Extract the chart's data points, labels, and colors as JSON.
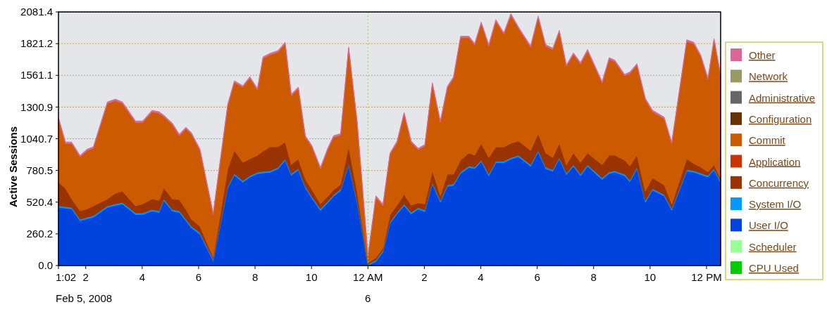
{
  "chart_data": {
    "type": "area",
    "stacked": true,
    "ylabel": "Active Sessions",
    "x": [
      "2008-02-05T13:02",
      "2008-02-05T13:17",
      "2008-02-05T13:30",
      "2008-02-05T13:48",
      "2008-02-05T14:03",
      "2008-02-05T14:16",
      "2008-02-05T14:46",
      "2008-02-05T15:03",
      "2008-02-05T15:18",
      "2008-02-05T15:46",
      "2008-02-05T16:01",
      "2008-02-05T16:21",
      "2008-02-05T16:36",
      "2008-02-05T16:46",
      "2008-02-05T17:04",
      "2008-02-05T17:19",
      "2008-02-05T17:33",
      "2008-02-05T17:45",
      "2008-02-05T18:03",
      "2008-02-05T18:31",
      "2008-02-05T19:02",
      "2008-02-05T19:16",
      "2008-02-05T19:34",
      "2008-02-05T19:49",
      "2008-02-05T20:05",
      "2008-02-05T20:17",
      "2008-02-05T20:32",
      "2008-02-05T20:49",
      "2008-02-05T21:04",
      "2008-02-05T21:17",
      "2008-02-05T21:32",
      "2008-02-05T21:47",
      "2008-02-05T22:01",
      "2008-02-05T22:19",
      "2008-02-05T22:35",
      "2008-02-05T22:47",
      "2008-02-05T23:02",
      "2008-02-05T23:19",
      "2008-02-05T23:37",
      "2008-02-06T00:00",
      "2008-02-06T00:17",
      "2008-02-06T00:32",
      "2008-02-06T00:47",
      "2008-02-06T01:02",
      "2008-02-06T01:17",
      "2008-02-06T01:32",
      "2008-02-06T01:47",
      "2008-02-06T02:01",
      "2008-02-06T02:17",
      "2008-02-06T02:34",
      "2008-02-06T02:49",
      "2008-02-06T03:02",
      "2008-02-06T03:17",
      "2008-02-06T03:35",
      "2008-02-06T03:47",
      "2008-02-06T04:01",
      "2008-02-06T04:17",
      "2008-02-06T04:32",
      "2008-02-06T04:49",
      "2008-02-06T05:04",
      "2008-02-06T05:20",
      "2008-02-06T05:46",
      "2008-02-06T06:02",
      "2008-02-06T06:18",
      "2008-02-06T06:33",
      "2008-02-06T06:47",
      "2008-02-06T07:02",
      "2008-02-06T07:17",
      "2008-02-06T07:32",
      "2008-02-06T07:47",
      "2008-02-06T08:18",
      "2008-02-06T08:33",
      "2008-02-06T08:45",
      "2008-02-06T09:06",
      "2008-02-06T09:17",
      "2008-02-06T09:32",
      "2008-02-06T09:50",
      "2008-02-06T10:05",
      "2008-02-06T10:30",
      "2008-02-06T10:46",
      "2008-02-06T11:18",
      "2008-02-06T11:33",
      "2008-02-06T11:48",
      "2008-02-06T12:03",
      "2008-02-06T12:16",
      "2008-02-06T12:30"
    ],
    "series": [
      {
        "name": "CPU Used",
        "color": "#00cc00",
        "values": [
          null,
          null,
          null,
          null,
          null,
          null,
          null,
          null,
          null,
          null,
          null,
          null,
          null,
          null,
          null,
          null,
          null,
          null,
          null,
          null,
          null,
          null,
          null,
          null,
          null,
          null,
          null,
          null,
          null,
          null,
          null,
          null,
          null,
          null,
          null,
          null,
          null,
          null,
          null,
          null,
          null,
          null,
          null,
          null,
          null,
          null,
          null,
          null,
          null,
          null,
          null,
          null,
          null,
          null,
          null,
          null,
          null,
          null,
          null,
          null,
          null,
          null,
          null,
          null,
          null,
          null,
          null,
          null,
          null,
          null,
          null,
          null,
          null,
          null,
          null,
          null,
          null,
          null,
          null,
          null,
          null,
          null,
          null,
          null,
          null,
          null
        ]
      },
      {
        "name": "Scheduler",
        "color": "#99ff99",
        "values": [
          null,
          null,
          null,
          null,
          null,
          null,
          null,
          null,
          null,
          null,
          null,
          null,
          null,
          null,
          null,
          null,
          null,
          null,
          null,
          null,
          null,
          null,
          null,
          null,
          null,
          null,
          null,
          null,
          null,
          null,
          null,
          null,
          null,
          null,
          null,
          null,
          null,
          null,
          null,
          null,
          null,
          null,
          null,
          null,
          null,
          null,
          null,
          null,
          null,
          null,
          null,
          null,
          null,
          null,
          null,
          null,
          null,
          null,
          null,
          null,
          null,
          null,
          null,
          null,
          null,
          null,
          null,
          null,
          null,
          null,
          null,
          null,
          null,
          null,
          null,
          null,
          null,
          null,
          null,
          null,
          null,
          null,
          null,
          null,
          null,
          null
        ]
      },
      {
        "name": "User I/O",
        "color": "#0044dd",
        "values": [
          477,
          471,
          465,
          367,
          384,
          396,
          477,
          494,
          505,
          419,
          419,
          448,
          436,
          534,
          448,
          436,
          367,
          309,
          257,
          38,
          638,
          742,
          684,
          725,
          754,
          760,
          765,
          794,
          863,
          742,
          783,
          638,
          552,
          453,
          517,
          569,
          615,
          823,
          517,
          0,
          33,
          111,
          346,
          424,
          492,
          424,
          463,
          443,
          668,
          521,
          649,
          658,
          756,
          805,
          795,
          853,
          737,
          844,
          844,
          873,
          893,
          815,
          932,
          795,
          775,
          873,
          746,
          815,
          737,
          815,
          707,
          756,
          766,
          737,
          687,
          795,
          521,
          619,
          571,
          453,
          775,
          766,
          746,
          727,
          785,
          678
        ]
      },
      {
        "name": "System I/O",
        "color": "#0099ff",
        "values": [
          12,
          12,
          12,
          12,
          12,
          12,
          12,
          12,
          12,
          12,
          12,
          12,
          12,
          12,
          12,
          12,
          12,
          12,
          12,
          12,
          12,
          12,
          12,
          12,
          12,
          12,
          12,
          12,
          12,
          12,
          12,
          12,
          12,
          12,
          12,
          12,
          12,
          12,
          12,
          9,
          12,
          12,
          12,
          12,
          12,
          12,
          12,
          12,
          12,
          12,
          12,
          12,
          12,
          12,
          12,
          12,
          12,
          12,
          12,
          12,
          12,
          12,
          12,
          12,
          12,
          12,
          12,
          12,
          12,
          12,
          12,
          12,
          12,
          12,
          12,
          12,
          12,
          12,
          12,
          12,
          12,
          12,
          12,
          12,
          12,
          12
        ]
      },
      {
        "name": "Concurrency",
        "color": "#993300",
        "values": [
          196,
          150,
          69,
          69,
          69,
          81,
          57,
          87,
          93,
          58,
          75,
          86,
          87,
          93,
          86,
          93,
          81,
          58,
          52,
          17,
          145,
          191,
          151,
          138,
          138,
          167,
          197,
          168,
          139,
          75,
          80,
          58,
          57,
          41,
          40,
          40,
          41,
          139,
          81,
          12,
          19,
          19,
          59,
          59,
          79,
          59,
          39,
          49,
          98,
          40,
          88,
          79,
          97,
          107,
          98,
          138,
          136,
          117,
          117,
          118,
          117,
          117,
          137,
          117,
          98,
          118,
          69,
          97,
          97,
          97,
          108,
          137,
          127,
          116,
          118,
          98,
          78,
          88,
          78,
          39,
          88,
          59,
          49,
          29,
          30,
          20
        ]
      },
      {
        "name": "Application",
        "color": "#cc3300",
        "values": [
          null,
          null,
          null,
          null,
          null,
          null,
          null,
          null,
          null,
          null,
          null,
          null,
          null,
          null,
          null,
          null,
          null,
          null,
          null,
          null,
          null,
          null,
          null,
          null,
          null,
          null,
          null,
          null,
          null,
          null,
          null,
          null,
          null,
          null,
          null,
          null,
          null,
          null,
          null,
          null,
          null,
          null,
          null,
          null,
          null,
          null,
          null,
          null,
          null,
          null,
          null,
          null,
          null,
          null,
          null,
          null,
          null,
          null,
          null,
          null,
          null,
          null,
          null,
          null,
          null,
          null,
          null,
          null,
          null,
          null,
          null,
          null,
          null,
          null,
          null,
          null,
          null,
          null,
          null,
          null,
          null,
          null,
          null,
          null,
          null,
          null
        ]
      },
      {
        "name": "Commit",
        "color": "#cc5a00",
        "values": [
          519,
          369,
          456,
          444,
          479,
          473,
          785,
          761,
          721,
          686,
          669,
          716,
          715,
          583,
          612,
          525,
          663,
          698,
          623,
          352,
          519,
          560,
          617,
          664,
          537,
          762,
          756,
          779,
          808,
          566,
          578,
          346,
          352,
          288,
          387,
          433,
          403,
          808,
          565,
          57,
          497,
          350,
          495,
          515,
          662,
          515,
          437,
          477,
          711,
          603,
          711,
          789,
          1005,
          946,
          906,
          984,
          917,
          1034,
          926,
          1053,
          926,
          848,
          955,
          878,
          887,
          916,
          809,
          809,
          809,
          838,
          671,
          789,
          769,
          692,
          760,
          740,
          751,
          545,
          545,
          496,
          966,
          984,
          907,
          760,
          1024,
          847
        ]
      },
      {
        "name": "Configuration",
        "color": "#663300",
        "values": [
          null,
          null,
          null,
          null,
          null,
          null,
          null,
          null,
          null,
          null,
          null,
          null,
          null,
          null,
          null,
          null,
          null,
          null,
          null,
          null,
          null,
          null,
          null,
          null,
          null,
          null,
          null,
          null,
          null,
          null,
          null,
          null,
          null,
          null,
          null,
          null,
          null,
          null,
          null,
          null,
          null,
          null,
          null,
          null,
          null,
          null,
          null,
          null,
          null,
          null,
          null,
          null,
          null,
          null,
          null,
          null,
          null,
          null,
          null,
          null,
          null,
          null,
          null,
          null,
          null,
          null,
          null,
          null,
          null,
          null,
          null,
          null,
          null,
          null,
          null,
          null,
          null,
          null,
          null,
          null,
          null,
          null,
          null,
          null,
          null,
          null
        ]
      },
      {
        "name": "Administrative",
        "color": "#666666",
        "values": [
          null,
          null,
          null,
          null,
          null,
          null,
          null,
          null,
          null,
          null,
          null,
          null,
          null,
          null,
          null,
          null,
          null,
          null,
          null,
          null,
          null,
          null,
          null,
          null,
          null,
          null,
          null,
          null,
          null,
          null,
          null,
          null,
          null,
          null,
          null,
          null,
          null,
          null,
          null,
          null,
          null,
          null,
          null,
          null,
          null,
          null,
          null,
          null,
          null,
          null,
          null,
          null,
          null,
          null,
          null,
          null,
          null,
          null,
          null,
          null,
          null,
          null,
          null,
          null,
          null,
          null,
          null,
          null,
          null,
          null,
          null,
          null,
          null,
          null,
          null,
          null,
          null,
          null,
          null,
          null,
          null,
          null,
          null,
          null,
          null,
          null
        ]
      },
      {
        "name": "Network",
        "color": "#999966",
        "values": [
          null,
          null,
          null,
          null,
          null,
          null,
          null,
          null,
          null,
          null,
          null,
          null,
          null,
          null,
          null,
          null,
          null,
          null,
          null,
          null,
          null,
          null,
          null,
          null,
          null,
          null,
          null,
          null,
          null,
          null,
          null,
          null,
          null,
          null,
          null,
          null,
          null,
          null,
          null,
          null,
          null,
          null,
          null,
          null,
          null,
          null,
          null,
          null,
          null,
          null,
          null,
          null,
          null,
          null,
          null,
          null,
          null,
          null,
          null,
          null,
          null,
          null,
          null,
          null,
          null,
          null,
          null,
          null,
          null,
          null,
          null,
          null,
          null,
          null,
          null,
          null,
          null,
          null,
          null,
          null,
          null,
          null,
          null,
          null,
          null,
          null
        ]
      },
      {
        "name": "Other",
        "color": "#dd6699",
        "values": [
          12,
          12,
          12,
          12,
          12,
          12,
          12,
          12,
          12,
          12,
          12,
          12,
          12,
          12,
          12,
          12,
          12,
          12,
          12,
          12,
          12,
          12,
          12,
          12,
          12,
          12,
          12,
          12,
          12,
          12,
          12,
          12,
          12,
          12,
          12,
          12,
          12,
          12,
          12,
          12,
          12,
          12,
          12,
          12,
          12,
          12,
          12,
          12,
          12,
          12,
          12,
          12,
          12,
          12,
          12,
          12,
          12,
          12,
          12,
          12,
          12,
          12,
          12,
          12,
          12,
          12,
          12,
          12,
          12,
          12,
          12,
          12,
          12,
          12,
          12,
          12,
          12,
          12,
          12,
          12,
          12,
          12,
          12,
          12,
          12,
          12
        ]
      }
    ],
    "xlim": [
      "2008-02-05T13:02",
      "2008-02-06T12:30"
    ],
    "xticks": [
      {
        "value": "2008-02-05T13:02",
        "label": "1:02\nFeb 5, 2008"
      },
      {
        "value": "2008-02-05T14:00",
        "label": "2"
      },
      {
        "value": "2008-02-05T16:00",
        "label": "4"
      },
      {
        "value": "2008-02-05T18:00",
        "label": "6"
      },
      {
        "value": "2008-02-05T20:00",
        "label": "8"
      },
      {
        "value": "2008-02-05T22:00",
        "label": "10"
      },
      {
        "value": "2008-02-06T00:00",
        "label": "12 AM\n6"
      },
      {
        "value": "2008-02-06T02:00",
        "label": "2"
      },
      {
        "value": "2008-02-06T04:00",
        "label": "4"
      },
      {
        "value": "2008-02-06T06:00",
        "label": "6"
      },
      {
        "value": "2008-02-06T08:00",
        "label": "8"
      },
      {
        "value": "2008-02-06T10:00",
        "label": "10"
      },
      {
        "value": "2008-02-06T12:00",
        "label": "12 PM"
      }
    ],
    "ylim": [
      0,
      2081.4
    ],
    "yticks": [
      {
        "value": 0,
        "label": "0.0"
      },
      260.2,
      520.4,
      780.5,
      1040.7,
      1300.9,
      1561.1,
      1821.2,
      2081.4
    ],
    "grid": "y",
    "legend": "right",
    "ref_lines": [
      {
        "axis": "x",
        "value": "2008-02-06T00:00",
        "color": "#99cc66",
        "line_style": "dotted"
      }
    ]
  }
}
